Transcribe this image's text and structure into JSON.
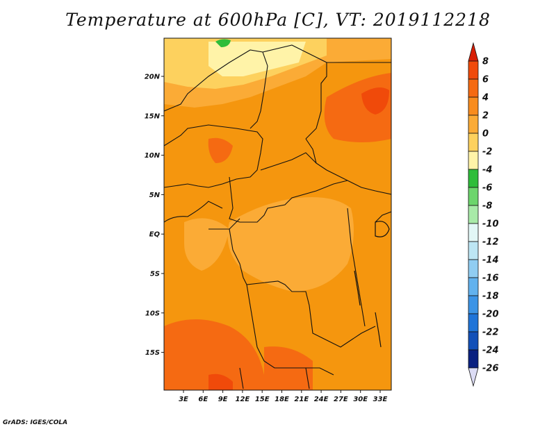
{
  "title": "Temperature at 600hPa [C], VT: 2019112218",
  "credit": "GrADS: IGES/COLA",
  "y_axis_labels": [
    "20N",
    "15N",
    "10N",
    "5N",
    "EQ",
    "5S",
    "10S",
    "15S"
  ],
  "x_axis_labels": [
    "3E",
    "6E",
    "9E",
    "12E",
    "15E",
    "18E",
    "21E",
    "24E",
    "27E",
    "30E",
    "33E"
  ],
  "colorbar": {
    "labels": [
      "8",
      "6",
      "4",
      "2",
      "0",
      "-2",
      "-4",
      "-6",
      "-8",
      "-10",
      "-12",
      "-14",
      "-16",
      "-18",
      "-20",
      "-22",
      "-24",
      "-26"
    ],
    "colors": [
      "#d81e05",
      "#f04a0a",
      "#f56a12",
      "#f88c1e",
      "#fbab36",
      "#fdd15e",
      "#fff3a8",
      "#2ebd3a",
      "#6cd56c",
      "#a8eaa8",
      "#e2f7f6",
      "#bde6f4",
      "#90cdf2",
      "#62b2ee",
      "#3c94e6",
      "#1f74d8",
      "#1250b8",
      "#0a2080",
      "#dcdcf5"
    ]
  },
  "map": {
    "background_color": "#f5960e",
    "lon_range": [
      0,
      35
    ],
    "lat_range": [
      -20,
      24.5
    ]
  }
}
